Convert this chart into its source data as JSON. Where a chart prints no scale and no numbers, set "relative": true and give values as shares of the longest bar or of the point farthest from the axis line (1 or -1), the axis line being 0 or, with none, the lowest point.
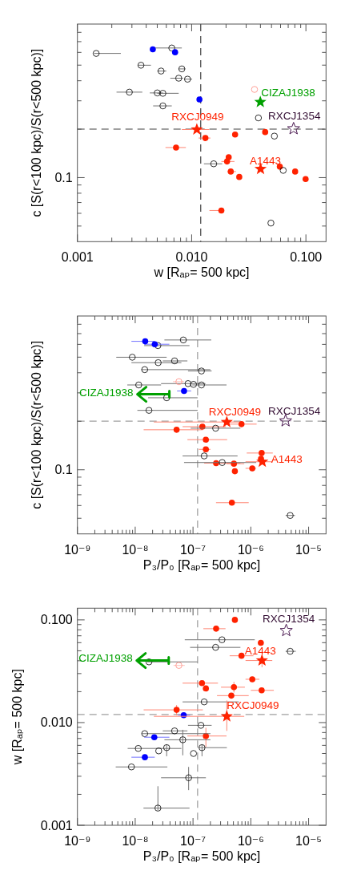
{
  "chart_data": [
    {
      "type": "scatter",
      "xlabel": "w [Rₐₚ= 500 kpc]",
      "ylabel": "c [S(r<100 kpc)/S(r<500 kpc)]",
      "log": "x",
      "relative": true,
      "xlim": [
        0.001,
        0.15
      ],
      "xticks": [
        {
          "value": 0.001,
          "label": "0.001"
        },
        {
          "value": 0.002,
          "label": null
        },
        {
          "value": 0.003,
          "label": null
        },
        {
          "value": 0.004,
          "label": null
        },
        {
          "value": 0.005,
          "label": null
        },
        {
          "value": 0.006,
          "label": null
        },
        {
          "value": 0.007,
          "label": null
        },
        {
          "value": 0.008,
          "label": null
        },
        {
          "value": 0.009,
          "label": null
        },
        {
          "value": 0.01,
          "label": "0.010"
        },
        {
          "value": 0.02,
          "label": null
        },
        {
          "value": 0.03,
          "label": null
        },
        {
          "value": 0.04,
          "label": null
        },
        {
          "value": 0.05,
          "label": null
        },
        {
          "value": 0.06,
          "label": null
        },
        {
          "value": 0.07,
          "label": null
        },
        {
          "value": 0.08,
          "label": null
        },
        {
          "value": 0.09,
          "label": null
        },
        {
          "value": 0.1,
          "label": "0.100"
        }
      ],
      "ref_lines": [
        {
          "axis": "x",
          "value": 0.012,
          "color": "#505050",
          "line_style": "dashed"
        },
        {
          "axis": "y",
          "value": 0.581,
          "color": "#808080",
          "line_style": "dashed"
        }
      ],
      "series": [
        {
          "color": "#ff2200",
          "marker": "circle",
          "x": [
            0.0132,
            0.024,
            0.044,
            0.0073,
            0.0211,
            0.0204,
            0.022,
            0.0261,
            0.0591,
            0.0805,
            0.0994,
            0.0182
          ],
          "values": [
            0.535,
            0.553,
            0.566,
            0.486,
            0.436,
            0.414,
            0.362,
            0.334,
            0.387,
            0.362,
            0.323,
            0.161
          ],
          "xerrors": [
            [
              0.0115,
              0.0146
            ],
            null,
            null,
            [
              0.0059,
              0.0089
            ],
            null,
            [
              0.0182,
              0.0237
            ],
            [
              0.0205,
              0.0244
            ],
            null,
            null,
            null,
            null,
            [
              0.0143,
              0.0186
            ]
          ]
        },
        {
          "color": "#000000",
          "marker": "circle",
          "x": [
            0.00146,
            0.0067,
            0.0036,
            0.0054,
            0.0082,
            0.0077,
            0.0092,
            0.00285,
            0.005,
            0.0056,
            0.0056,
            0.0384,
            0.053,
            0.0156,
            0.0633,
            0.0494
          ],
          "values": [
            0.972,
            1,
            0.911,
            0.881,
            0.892,
            0.844,
            0.839,
            0.772,
            0.768,
            0.766,
            0.701,
            0.639,
            0.545,
            0.402,
            0.368,
            0.096
          ],
          "xerrors": [
            [
              0.0014,
              0.0024
            ],
            [
              0.0046,
              0.0082
            ],
            [
              0.0034,
              0.0044
            ],
            [
              0.005,
              0.006
            ],
            [
              0.0077,
              0.0088
            ],
            [
              0.0065,
              0.0084
            ],
            [
              0.0086,
              0.0101
            ],
            [
              0.0022,
              0.0037
            ],
            [
              0.0043,
              0.0056
            ],
            [
              0.005,
              0.0077
            ],
            [
              0.0046,
              0.0067
            ],
            null,
            null,
            [
              0.0128,
              0.0185
            ],
            null,
            null
          ]
        },
        {
          "color": "#0000ff",
          "marker": "circle",
          "x": [
            0.00457,
            0.00716,
            0.0117
          ],
          "values": [
            0.993,
            0.978,
            0.734
          ]
        },
        {
          "color": "#ff2200",
          "marker": "star",
          "x": [
            0.0111,
            0.0401
          ],
          "values": [
            0.579,
            0.375
          ],
          "xerrors": [
            [
              0.0082,
              0.0143
            ],
            null
          ]
        },
        {
          "color": "#4a1850",
          "marker": "star",
          "x": [
            0.078
          ],
          "values": [
            0.583
          ]
        },
        {
          "color": "#ff8a80",
          "marker": "circle",
          "x": [
            0.0355
          ],
          "values": [
            0.786
          ]
        },
        {
          "color": "#00a000",
          "marker": "star",
          "x": [
            0.0399
          ],
          "values": [
            0.721
          ]
        }
      ],
      "annotations": [
        {
          "text": "CIZAJ1938",
          "x": 0.0399,
          "y": 0.721
        },
        {
          "text": "RXCJ1354",
          "x": 0.078,
          "y": 0.583
        },
        {
          "text": "RXCJ0949",
          "x": 0.0111,
          "y": 0.579
        },
        {
          "text": "A1443",
          "x": 0.0401,
          "y": 0.375
        },
        "0.1"
      ]
    },
    {
      "type": "scatter",
      "xlabel": "P₃/P₀ [Rₐₚ= 500 kpc]",
      "ylabel": "c [S(r<100 kpc)/S(r<500 kpc)]",
      "log": "x",
      "relative": true,
      "xlim": [
        1e-09,
        2e-05
      ],
      "xticks": [
        {
          "value": 1e-09,
          "label": "10⁻⁹"
        },
        {
          "value": 2e-09,
          "label": null
        },
        {
          "value": 3e-09,
          "label": null
        },
        {
          "value": 4e-09,
          "label": null
        },
        {
          "value": 5e-09,
          "label": null
        },
        {
          "value": 6e-09,
          "label": null
        },
        {
          "value": 7e-09,
          "label": null
        },
        {
          "value": 8e-09,
          "label": null
        },
        {
          "value": 9e-09,
          "label": null
        },
        {
          "value": 1e-08,
          "label": "10⁻⁸"
        },
        {
          "value": 2e-08,
          "label": null
        },
        {
          "value": 3e-08,
          "label": null
        },
        {
          "value": 4e-08,
          "label": null
        },
        {
          "value": 5e-08,
          "label": null
        },
        {
          "value": 6e-08,
          "label": null
        },
        {
          "value": 7e-08,
          "label": null
        },
        {
          "value": 8e-08,
          "label": null
        },
        {
          "value": 9e-08,
          "label": null
        },
        {
          "value": 1e-07,
          "label": "10⁻⁷"
        },
        {
          "value": 2e-07,
          "label": null
        },
        {
          "value": 3e-07,
          "label": null
        },
        {
          "value": 4e-07,
          "label": null
        },
        {
          "value": 5e-07,
          "label": null
        },
        {
          "value": 6e-07,
          "label": null
        },
        {
          "value": 7e-07,
          "label": null
        },
        {
          "value": 8e-07,
          "label": null
        },
        {
          "value": 9e-07,
          "label": null
        },
        {
          "value": 1e-06,
          "label": "10⁻⁶"
        },
        {
          "value": 2e-06,
          "label": null
        },
        {
          "value": 3e-06,
          "label": null
        },
        {
          "value": 4e-06,
          "label": null
        },
        {
          "value": 5e-06,
          "label": null
        },
        {
          "value": 6e-06,
          "label": null
        },
        {
          "value": 7e-06,
          "label": null
        },
        {
          "value": 8e-06,
          "label": null
        },
        {
          "value": 9e-06,
          "label": null
        },
        {
          "value": 1e-05,
          "label": "10⁻⁵"
        }
      ],
      "ref_lines": [
        {
          "axis": "x",
          "value": 1.2e-07,
          "color": "#a0a0a0",
          "line_style": "dashed"
        },
        {
          "axis": "y",
          "value": 0.581,
          "color": "#a0a0a0",
          "line_style": "dashed"
        }
      ],
      "series": [
        {
          "color": "#ff2200",
          "marker": "circle",
          "x": [
            5.2e-08,
            1.45e-07,
            6.9e-07,
            1.67e-07,
            1.67e-07,
            1.54e-06,
            2.51e-07,
            5.1e-07,
            5.3e-07,
            1.06e-06,
            4.7e-07,
            1.5e-06
          ],
          "values": [
            0.537,
            0.553,
            0.566,
            0.486,
            0.436,
            0.417,
            0.365,
            0.362,
            0.323,
            0.338,
            0.161,
            0.387
          ],
          "xerrors": [
            [
              1.4e-08,
              1.48e-07
            ],
            [
              6.6e-08,
              3.7e-07
            ],
            [
              4.1e-07,
              1.26e-06
            ],
            [
              8e-08,
              3.9e-07
            ],
            [
              1.26e-07,
              2e-07
            ],
            [
              8.5e-07,
              2.4e-06
            ],
            [
              1.56e-07,
              6.6e-07
            ],
            [
              3.8e-07,
              7.7e-07
            ],
            null,
            [
              8.1e-07,
              1.24e-06
            ],
            [
              2.5e-07,
              9.2e-07
            ],
            null
          ]
        },
        {
          "color": "#000000",
          "marker": "circle",
          "x": [
            6.8e-08,
            2.47e-08,
            8.9e-09,
            4.8e-08,
            2.5e-08,
            1.46e-08,
            1.4e-07,
            1.15e-08,
            8.2e-08,
            1.02e-07,
            1.4e-07,
            3.5e-08,
            1.73e-08,
            2.46e-07,
            1.56e-07,
            3.2e-07,
            4.8e-06
          ],
          "values": [
            1,
            0.971,
            0.911,
            0.892,
            0.883,
            0.847,
            0.84,
            0.768,
            0.775,
            0.771,
            0.768,
            0.702,
            0.637,
            0.545,
            0.402,
            0.368,
            0.095
          ],
          "xerrors": [
            [
              3.2e-08,
              2.07e-07
            ],
            [
              1.43e-08,
              8.7e-08
            ],
            [
              4.7e-09,
              3.5e-08
            ],
            [
              3e-08,
              8e-08
            ],
            [
              8.6e-09,
              6.3e-08
            ],
            [
              1.28e-08,
              2e-07
            ],
            [
              8.2e-08,
              2.1e-07
            ],
            [
              7.3e-09,
              2.8e-08
            ],
            [
              2.8e-08,
              1.64e-07
            ],
            null,
            [
              9.7e-08,
              3.8e-07
            ],
            [
              1.67e-08,
              1.2e-07
            ],
            [
              1.09e-08,
              1.2e-07
            ],
            [
              9.1e-08,
              6.6e-07
            ],
            [
              6.6e-08,
              5.9e-07
            ],
            [
              7e-08,
              1.24e-06
            ],
            [
              4e-06,
              5.8e-06
            ]
          ]
        },
        {
          "color": "#0000ff",
          "marker": "circle",
          "x": [
            1.49e-08,
            2.18e-08,
            7e-08
          ],
          "values": [
            0.993,
            0.978,
            0.737
          ],
          "xerrors": [
            [
              8.6e-09,
              2.18e-08
            ],
            [
              1.43e-08,
              3.9e-08
            ],
            [
              5.3e-08,
              9.3e-08
            ]
          ]
        },
        {
          "color": "#ff2200",
          "marker": "star",
          "x": [
            3.84e-07,
            1.58e-06
          ],
          "values": [
            0.577,
            0.372
          ],
          "xerrors": [
            [
              2.1e-08,
              6.2e-07
            ],
            [
              8.1e-07,
              2.35e-06
            ]
          ]
        },
        {
          "color": "#4a1850",
          "marker": "star",
          "x": [
            3.99e-06
          ],
          "values": [
            0.583
          ],
          "xerrors": [
            [
              3.2e-06,
              5e-06
            ]
          ]
        },
        {
          "color": "#ff8a80",
          "marker": "circle",
          "x": [
            5.7e-08
          ],
          "values": [
            0.785
          ],
          "xerrors": [
            [
              4.5e-08,
              7e-08
            ]
          ]
        }
      ],
      "annotations": [
        {
          "text": "CIZAJ1938",
          "x": 3.9e-08,
          "y": 0.72
        },
        {
          "text": "RXCJ1354",
          "x": 3.99e-06,
          "y": 0.583
        },
        {
          "text": "RXCJ0949",
          "x": 3.84e-07,
          "y": 0.577
        },
        {
          "text": "A1443",
          "x": 1.58e-06,
          "y": 0.372
        },
        "0.1"
      ]
    },
    {
      "type": "scatter",
      "xlabel": "P₃/P₀ [Rₐₚ= 500 kpc]",
      "ylabel": "w [Rₐₚ= 500 kpc]",
      "log": "xy",
      "xlim": [
        1e-09,
        2e-05
      ],
      "ylim": [
        0.001,
        0.13
      ],
      "xticks": [
        {
          "value": 1e-09,
          "label": "10⁻⁹"
        },
        {
          "value": 2e-09,
          "label": null
        },
        {
          "value": 3e-09,
          "label": null
        },
        {
          "value": 4e-09,
          "label": null
        },
        {
          "value": 5e-09,
          "label": null
        },
        {
          "value": 6e-09,
          "label": null
        },
        {
          "value": 7e-09,
          "label": null
        },
        {
          "value": 8e-09,
          "label": null
        },
        {
          "value": 9e-09,
          "label": null
        },
        {
          "value": 1e-08,
          "label": "10⁻⁸"
        },
        {
          "value": 2e-08,
          "label": null
        },
        {
          "value": 3e-08,
          "label": null
        },
        {
          "value": 4e-08,
          "label": null
        },
        {
          "value": 5e-08,
          "label": null
        },
        {
          "value": 6e-08,
          "label": null
        },
        {
          "value": 7e-08,
          "label": null
        },
        {
          "value": 8e-08,
          "label": null
        },
        {
          "value": 9e-08,
          "label": null
        },
        {
          "value": 1e-07,
          "label": "10⁻⁷"
        },
        {
          "value": 2e-07,
          "label": null
        },
        {
          "value": 3e-07,
          "label": null
        },
        {
          "value": 4e-07,
          "label": null
        },
        {
          "value": 5e-07,
          "label": null
        },
        {
          "value": 6e-07,
          "label": null
        },
        {
          "value": 7e-07,
          "label": null
        },
        {
          "value": 8e-07,
          "label": null
        },
        {
          "value": 9e-07,
          "label": null
        },
        {
          "value": 1e-06,
          "label": "10⁻⁶"
        },
        {
          "value": 2e-06,
          "label": null
        },
        {
          "value": 3e-06,
          "label": null
        },
        {
          "value": 4e-06,
          "label": null
        },
        {
          "value": 5e-06,
          "label": null
        },
        {
          "value": 6e-06,
          "label": null
        },
        {
          "value": 7e-06,
          "label": null
        },
        {
          "value": 8e-06,
          "label": null
        },
        {
          "value": 9e-06,
          "label": null
        },
        {
          "value": 1e-05,
          "label": "10⁻⁵"
        }
      ],
      "yticks": [
        {
          "value": 0.001,
          "label": "0.001"
        },
        {
          "value": 0.002,
          "label": null
        },
        {
          "value": 0.003,
          "label": null
        },
        {
          "value": 0.004,
          "label": null
        },
        {
          "value": 0.005,
          "label": null
        },
        {
          "value": 0.006,
          "label": null
        },
        {
          "value": 0.007,
          "label": null
        },
        {
          "value": 0.008,
          "label": null
        },
        {
          "value": 0.009,
          "label": null
        },
        {
          "value": 0.01,
          "label": "0.010"
        },
        {
          "value": 0.02,
          "label": null
        },
        {
          "value": 0.03,
          "label": null
        },
        {
          "value": 0.04,
          "label": null
        },
        {
          "value": 0.05,
          "label": null
        },
        {
          "value": 0.06,
          "label": null
        },
        {
          "value": 0.07,
          "label": null
        },
        {
          "value": 0.08,
          "label": null
        },
        {
          "value": 0.09,
          "label": null
        },
        {
          "value": 0.1,
          "label": "0.100"
        }
      ],
      "ref_lines": [
        {
          "axis": "x",
          "value": 1.2e-07,
          "color": "#a0a0a0",
          "line_style": "dashed"
        },
        {
          "axis": "y",
          "value": 0.012,
          "color": "#a0a0a0",
          "line_style": "dashed"
        }
      ],
      "series": [
        {
          "color": "#ff2200",
          "marker": "circle",
          "x": [
            5.2e-08,
            1.43e-07,
            6.9e-07,
            1.67e-07,
            1.67e-07,
            1.54e-06,
            5.1e-07,
            1.06e-06,
            1.49e-06,
            2.51e-07,
            5.3e-07,
            4.6e-07
          ],
          "values": [
            0.0133,
            0.0242,
            0.0447,
            0.0074,
            0.0215,
            0.0206,
            0.0221,
            0.0264,
            0.0598,
            0.0821,
            0.1,
            0.0183
          ],
          "xerrors": [
            [
              1.4e-08,
              1.48e-07
            ],
            [
              6.6e-08,
              2.7e-07
            ],
            [
              4.3e-07,
              1.11e-06
            ],
            [
              8e-08,
              3.8e-07
            ],
            null,
            [
              1e-06,
              2.5e-06
            ],
            [
              3.05e-07,
              7.9e-07
            ],
            [
              8.1e-07,
              1.41e-06
            ],
            null,
            [
              1.51e-07,
              3.65e-07
            ],
            null,
            [
              2.6e-07,
              9.2e-07
            ]
          ],
          "errors": [
            [
              0.0118,
              0.0148
            ],
            null,
            null,
            [
              0.0058,
              0.0089
            ],
            null,
            null,
            [
              0.0196,
              0.0249
            ],
            null,
            null,
            null,
            null,
            null
          ]
        },
        {
          "color": "#000000",
          "marker": "circle",
          "x": [
            3.17e-07,
            2.46e-07,
            4.8e-06,
            1.73e-08,
            1.56e-07,
            1.37e-07,
            1.46e-08,
            4.8e-08,
            6.65e-08,
            1.13e-08,
            2.55e-08,
            3.5e-08,
            1.02e-07,
            1.43e-07,
            8.6e-09,
            8.4e-08,
            2.47e-08
          ],
          "values": [
            0.064,
            0.054,
            0.0494,
            0.039,
            0.0159,
            0.0094,
            0.0078,
            0.0083,
            0.0068,
            0.0056,
            0.0053,
            0.0057,
            0.005,
            0.0057,
            0.0037,
            0.0029,
            0.00147
          ],
          "xerrors": [
            [
              7.2e-08,
              1.17e-06
            ],
            [
              8.9e-08,
              6.6e-07
            ],
            [
              4e-06,
              6e-06
            ],
            [
              1.6e-08,
              1.2e-07
            ],
            [
              6.6e-08,
              6.2e-07
            ],
            [
              8.2e-08,
              2.1e-07
            ],
            [
              1.3e-08,
              2e-07
            ],
            [
              3e-08,
              8e-08
            ],
            [
              3.2e-08,
              2e-07
            ],
            [
              7.4e-09,
              6.3e-08
            ],
            null,
            null,
            null,
            [
              1.26e-07,
              3.85e-07
            ],
            [
              4.6e-09,
              3.6e-08
            ],
            [
              2.8e-08,
              1.67e-07
            ],
            [
              1.39e-08,
              8.7e-08
            ]
          ],
          "errors": [
            null,
            null,
            null,
            null,
            null,
            null,
            null,
            null,
            [
              0.0048,
              0.0085
            ],
            null,
            null,
            [
              0.0047,
              0.0061
            ],
            null,
            [
              0.0047,
              0.0061
            ],
            null,
            [
              0.0022,
              0.0037
            ],
            [
              0.0014,
              0.0024
            ]
          ]
        },
        {
          "color": "#0000ff",
          "marker": "circle",
          "x": [
            6.9e-08,
            2.14e-08,
            1.47e-08
          ],
          "values": [
            0.0118,
            0.0072,
            0.0046
          ],
          "xerrors": [
            [
              5.5e-08,
              8.9e-08
            ],
            [
              1.43e-08,
              3.9e-08
            ],
            [
              8.6e-09,
              2.18e-08
            ]
          ]
        },
        {
          "color": "#ff2200",
          "marker": "star",
          "x": [
            3.84e-07,
            1.56e-06
          ],
          "values": [
            0.0115,
            0.0402
          ],
          "xerrors": [
            [
              2.1e-08,
              7.7e-07
            ],
            [
              8.1e-07,
              2.35e-06
            ]
          ],
          "errors": [
            [
              0.0083,
              0.0164
            ],
            [
              0.0346,
              0.0457
            ]
          ]
        },
        {
          "color": "#4a1850",
          "marker": "star",
          "x": [
            4.1e-06
          ],
          "values": [
            0.0787
          ]
        },
        {
          "color": "#ff8a80",
          "marker": "circle",
          "x": [
            5.7e-08
          ],
          "values": [
            0.036
          ],
          "xerrors": [
            [
              4.6e-08,
              7.2e-08
            ]
          ]
        }
      ],
      "annotations": [
        {
          "text": "CIZAJ1938",
          "x": 3.8e-08,
          "y": 0.0402
        },
        {
          "text": "RXCJ1354",
          "x": 4.1e-06,
          "y": 0.0787
        },
        {
          "text": "RXCJ0949",
          "x": 3.84e-07,
          "y": 0.0115
        },
        {
          "text": "A1443",
          "x": 1.56e-06,
          "y": 0.0402
        }
      ]
    }
  ]
}
